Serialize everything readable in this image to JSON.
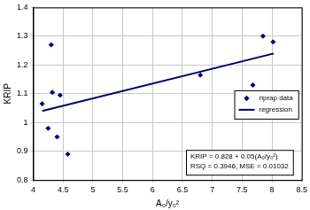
{
  "chart_data": {
    "type": "scatter",
    "x_label": "A₀/y₀²",
    "y_label": "KRIP",
    "annotations": [
      "KRIP = 0.828 + 0.05(A₀/y₀²)",
      "RSQ = 0.3946, MSE = 0.01032"
    ],
    "series": [
      {
        "name": "riprap data",
        "type": "scatter",
        "marker": "diamond",
        "color": "#000080",
        "x": [
          4.15,
          4.25,
          4.3,
          4.32,
          4.4,
          4.45,
          4.58,
          6.8,
          7.68,
          7.85,
          8.02
        ],
        "values": [
          1.065,
          0.98,
          1.27,
          1.105,
          0.95,
          1.095,
          0.89,
          1.165,
          1.13,
          1.3,
          1.28
        ]
      },
      {
        "name": "regression",
        "type": "line",
        "line_style": "solid",
        "color": "#000066",
        "x": [
          4.15,
          8.03
        ],
        "values": [
          1.04,
          1.24
        ]
      }
    ],
    "xlim": [
      4,
      8.5
    ],
    "xticks": [
      4,
      4.5,
      5,
      5.5,
      6,
      6.5,
      7,
      7.5,
      8,
      8.5
    ],
    "ylim": [
      0.8,
      1.4
    ],
    "yticks": [
      0.8,
      0.9,
      1,
      1.1,
      1.2,
      1.3,
      1.4
    ],
    "grid": true,
    "legend": "right"
  }
}
